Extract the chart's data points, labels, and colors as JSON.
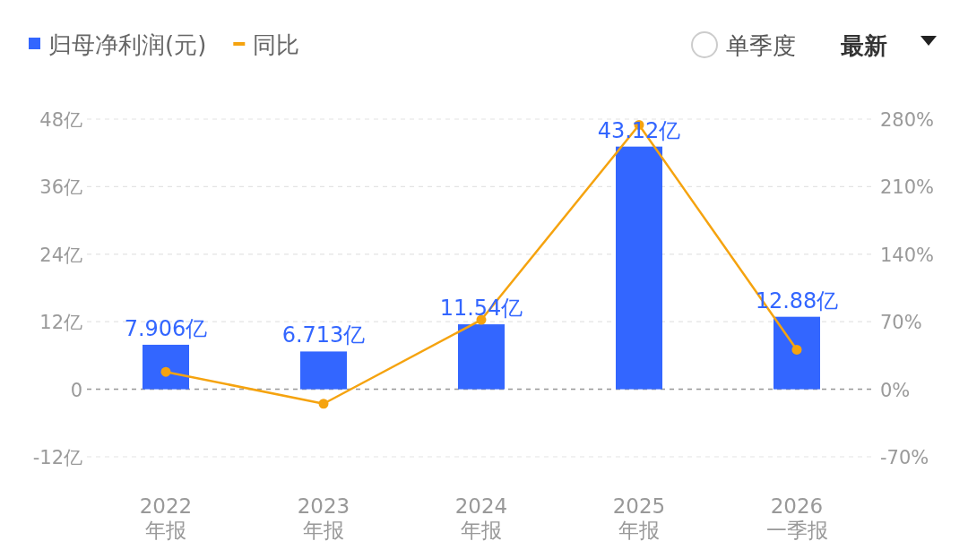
{
  "chart_data": {
    "type": "bar",
    "categories": [
      "2022\n年报",
      "2023\n年报",
      "2024\n年报",
      "2025\n年报",
      "2026\n一季报"
    ],
    "series": [
      {
        "name": "归母净利润(元)",
        "color": "#3366ff",
        "values": [
          7.906,
          6.713,
          11.54,
          43.12,
          12.88
        ],
        "value_labels": [
          "7.906亿",
          "6.713亿",
          "11.54亿",
          "43.12亿",
          "12.88亿"
        ]
      },
      {
        "name": "同比",
        "type": "line",
        "axis": "y2",
        "color": "#f5a30f",
        "values": [
          18,
          -15,
          72,
          274,
          41
        ]
      }
    ],
    "ylim": [
      -12,
      48
    ],
    "yticks": [
      {
        "value": -12,
        "label": "-12亿"
      },
      0,
      {
        "value": 12,
        "label": "12亿"
      },
      {
        "value": 24,
        "label": "24亿"
      },
      {
        "value": 36,
        "label": "36亿"
      },
      {
        "value": 48,
        "label": "48亿"
      }
    ],
    "y2lim": [
      -70,
      280
    ],
    "y2ticks": [
      {
        "value": -70,
        "label": "-70%"
      },
      {
        "value": 0,
        "label": "0%"
      },
      {
        "value": 70,
        "label": "70%"
      },
      {
        "value": 140,
        "label": "140%"
      },
      {
        "value": 210,
        "label": "210%"
      },
      {
        "value": 280,
        "label": "280%"
      }
    ],
    "ref_lines": [
      {
        "axis": "y",
        "value": 0,
        "color": "#999999",
        "line_style": "dashed"
      }
    ],
    "grid": "y",
    "legend": "top left",
    "marker": "circle",
    "annotations": [
      "单季度",
      "最新"
    ]
  }
}
